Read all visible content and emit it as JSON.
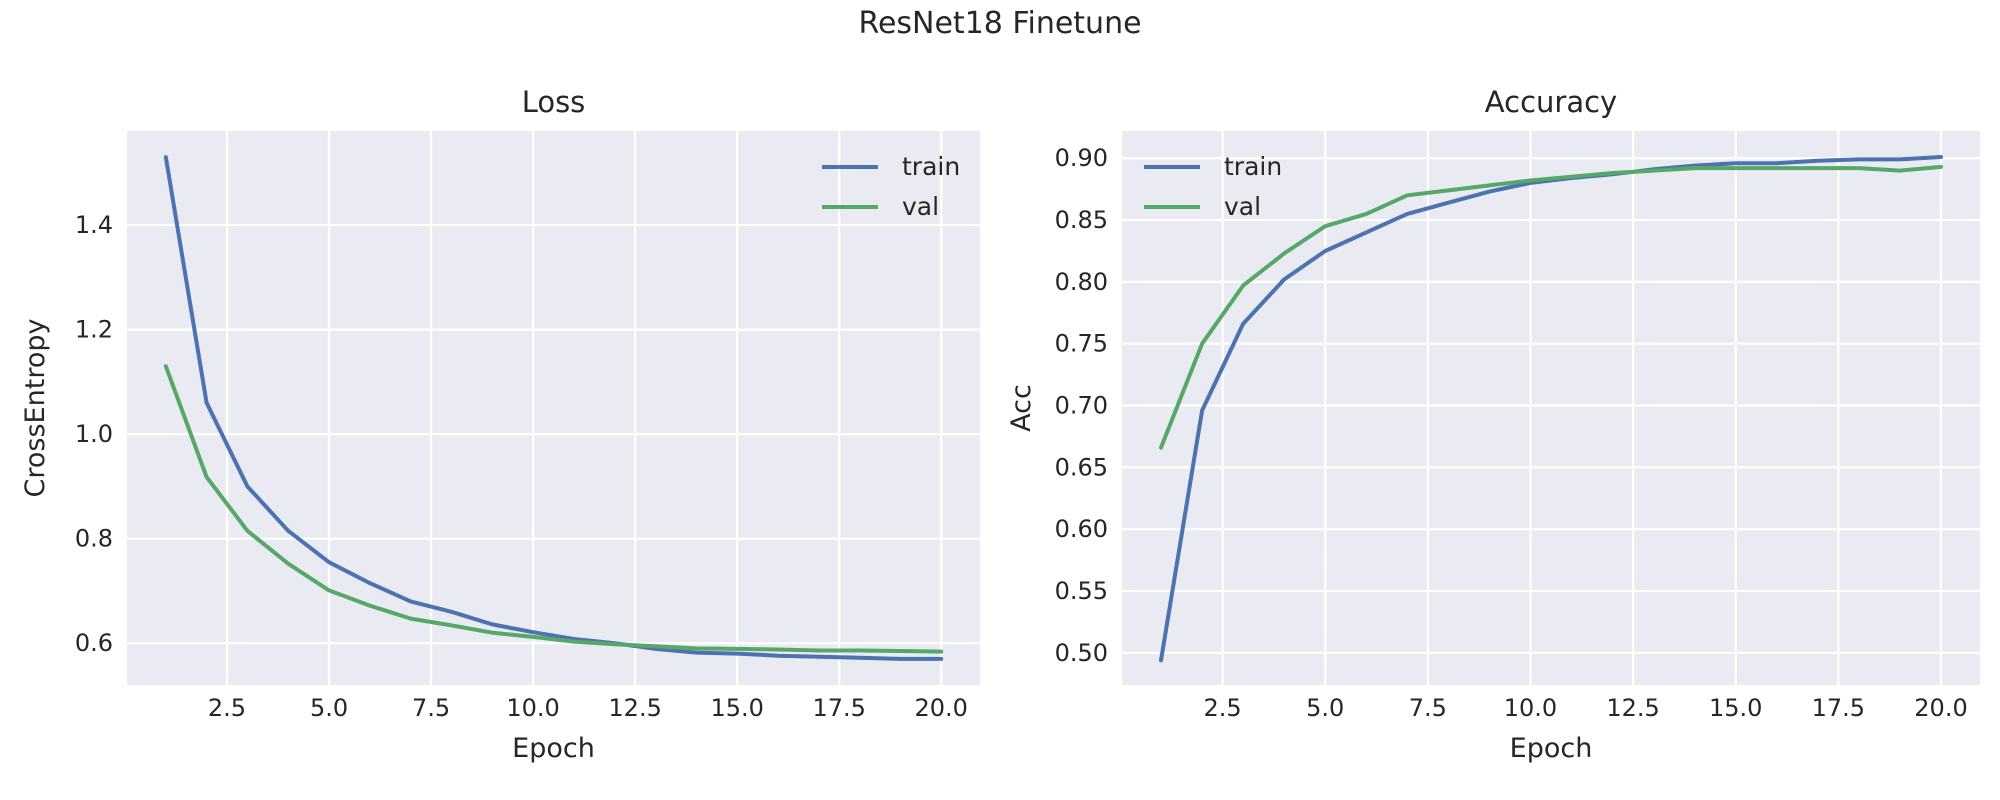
{
  "suptitle": "ResNet18 Finetune",
  "colors": {
    "background": "#eaeaf2",
    "grid": "#ffffff",
    "train": "#4c72b0",
    "val": "#55a868"
  },
  "chart_data": [
    {
      "type": "line",
      "title": "Loss",
      "xlabel": "Epoch",
      "ylabel": "CrossEntropy",
      "xlim": [
        0.05,
        20.95
      ],
      "ylim": [
        0.52,
        1.58
      ],
      "xticks": [
        2.5,
        5.0,
        7.5,
        10.0,
        12.5,
        15.0,
        17.5,
        20.0
      ],
      "xtick_labels": [
        "2.5",
        "5.0",
        "7.5",
        "10.0",
        "12.5",
        "15.0",
        "17.5",
        "20.0"
      ],
      "yticks": [
        0.6,
        0.8,
        1.0,
        1.2,
        1.4
      ],
      "ytick_labels": [
        "0.6",
        "0.8",
        "1.0",
        "1.2",
        "1.4"
      ],
      "grid": true,
      "legend": "upper right",
      "x": [
        1,
        2,
        3,
        4,
        5,
        6,
        7,
        8,
        9,
        10,
        11,
        12,
        13,
        14,
        15,
        16,
        17,
        18,
        19,
        20
      ],
      "series": [
        {
          "name": "train",
          "values": [
            1.53,
            1.06,
            0.9,
            0.815,
            0.755,
            0.715,
            0.68,
            0.66,
            0.636,
            0.621,
            0.608,
            0.6,
            0.589,
            0.582,
            0.58,
            0.576,
            0.574,
            0.572,
            0.57,
            0.57
          ]
        },
        {
          "name": "val",
          "values": [
            1.13,
            0.918,
            0.815,
            0.752,
            0.701,
            0.672,
            0.647,
            0.634,
            0.62,
            0.612,
            0.603,
            0.598,
            0.594,
            0.59,
            0.589,
            0.588,
            0.586,
            0.586,
            0.585,
            0.584
          ]
        }
      ]
    },
    {
      "type": "line",
      "title": "Accuracy",
      "xlabel": "Epoch",
      "ylabel": "Acc",
      "xlim": [
        0.05,
        20.95
      ],
      "ylim": [
        0.474,
        0.922
      ],
      "xticks": [
        2.5,
        5.0,
        7.5,
        10.0,
        12.5,
        15.0,
        17.5,
        20.0
      ],
      "xtick_labels": [
        "2.5",
        "5.0",
        "7.5",
        "10.0",
        "12.5",
        "15.0",
        "17.5",
        "20.0"
      ],
      "yticks": [
        0.5,
        0.55,
        0.6,
        0.65,
        0.7,
        0.75,
        0.8,
        0.85,
        0.9
      ],
      "ytick_labels": [
        "0.50",
        "0.55",
        "0.60",
        "0.65",
        "0.70",
        "0.75",
        "0.80",
        "0.85",
        "0.90"
      ],
      "grid": true,
      "legend": "upper left",
      "x": [
        1,
        2,
        3,
        4,
        5,
        6,
        7,
        8,
        9,
        10,
        11,
        12,
        13,
        14,
        15,
        16,
        17,
        18,
        19,
        20
      ],
      "series": [
        {
          "name": "train",
          "values": [
            0.494,
            0.696,
            0.766,
            0.802,
            0.825,
            0.84,
            0.855,
            0.864,
            0.873,
            0.88,
            0.884,
            0.887,
            0.891,
            0.894,
            0.896,
            0.896,
            0.898,
            0.899,
            0.899,
            0.901
          ]
        },
        {
          "name": "val",
          "values": [
            0.666,
            0.75,
            0.797,
            0.823,
            0.845,
            0.855,
            0.87,
            0.874,
            0.878,
            0.882,
            0.885,
            0.888,
            0.89,
            0.892,
            0.892,
            0.892,
            0.892,
            0.892,
            0.89,
            0.893
          ]
        }
      ]
    }
  ]
}
